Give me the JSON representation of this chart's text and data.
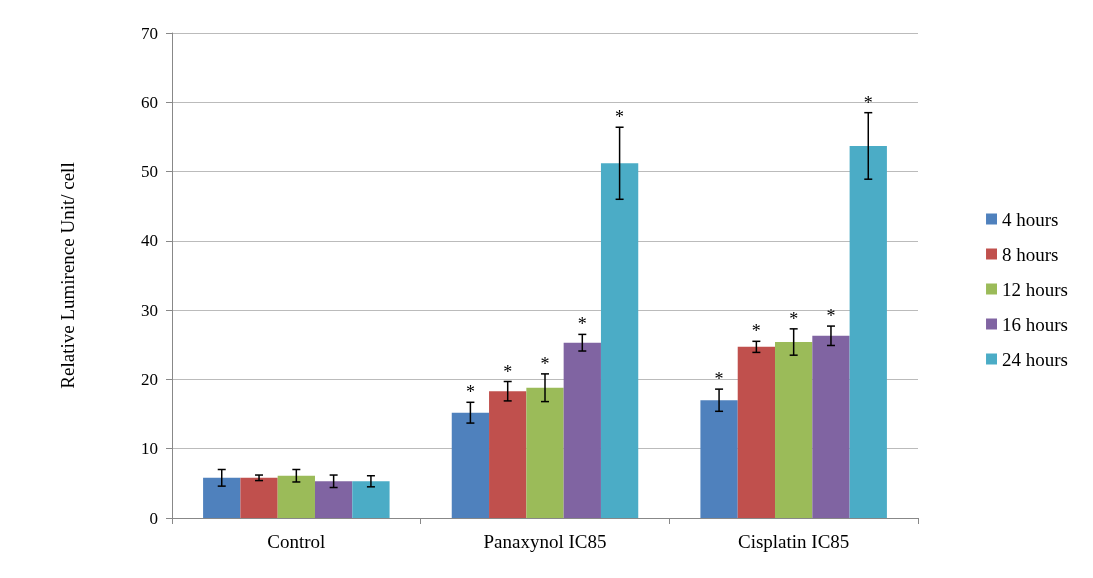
{
  "chart_data": {
    "type": "bar",
    "ylabel": "Relative Lumirence Unit/ cell",
    "categories": [
      "Control",
      "Panaxynol IC85",
      "Cisplatin IC85"
    ],
    "series": [
      {
        "name": "4 hours",
        "color": "#4f81bd",
        "values": [
          5.8,
          15.2,
          17.0
        ],
        "errors": [
          1.2,
          1.5,
          1.6
        ],
        "value_labels": [
          null,
          "*",
          "*"
        ]
      },
      {
        "name": "8 hours",
        "color": "#c0504d",
        "values": [
          5.8,
          18.3,
          24.7
        ],
        "errors": [
          0.4,
          1.4,
          0.8
        ],
        "value_labels": [
          null,
          "*",
          "*"
        ]
      },
      {
        "name": "12 hours",
        "color": "#9bbb59",
        "values": [
          6.1,
          18.8,
          25.4
        ],
        "errors": [
          0.9,
          2.0,
          1.9
        ],
        "value_labels": [
          null,
          "*",
          "*"
        ]
      },
      {
        "name": "16 hours",
        "color": "#8064a2",
        "values": [
          5.3,
          25.3,
          26.3
        ],
        "errors": [
          0.9,
          1.2,
          1.4
        ],
        "value_labels": [
          null,
          "*",
          "*"
        ]
      },
      {
        "name": "24 hours",
        "color": "#4bacc6",
        "values": [
          5.3,
          51.2,
          53.7
        ],
        "errors": [
          0.8,
          5.2,
          4.8
        ],
        "value_labels": [
          null,
          "*",
          "*"
        ]
      }
    ],
    "ylim": [
      0,
      70
    ],
    "yticks": [
      0,
      10,
      20,
      30,
      40,
      50,
      60,
      70
    ],
    "grid": "y",
    "legend": "right"
  }
}
